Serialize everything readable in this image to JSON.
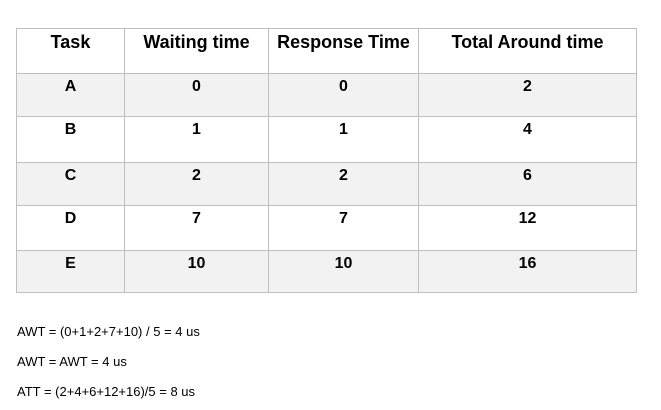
{
  "table": {
    "headers": [
      "Task",
      "Waiting time",
      "Response Time",
      "Total Around time"
    ],
    "rows": [
      [
        "A",
        "0",
        "0",
        "2"
      ],
      [
        "B",
        "1",
        "1",
        "4"
      ],
      [
        "C",
        "2",
        "2",
        "6"
      ],
      [
        "D",
        "7",
        "7",
        "12"
      ],
      [
        "E",
        "10",
        "10",
        "16"
      ]
    ],
    "shaded_row_color": "#f2f2f2",
    "border_color": "#bfbfbf"
  },
  "formulas": [
    "AWT = (0+1+2+7+10) / 5 = 4 us",
    "AWT = AWT = 4 us",
    "ATT = (2+4+6+12+16)/5 = 8 us"
  ]
}
